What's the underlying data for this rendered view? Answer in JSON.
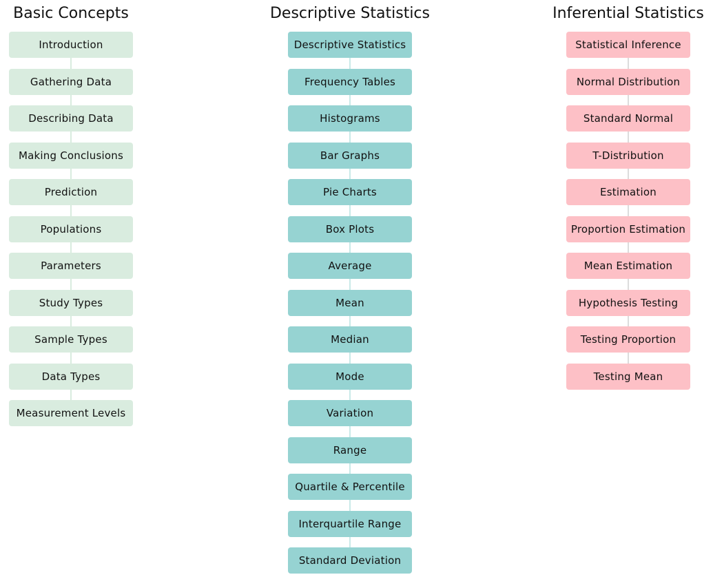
{
  "colors": {
    "basic_fill": "#d9ecdf",
    "basic_line": "#d9ecdf",
    "desc_fill": "#96d3d2",
    "desc_line": "#c9e9e8",
    "inf_fill": "#fdc0c6",
    "inf_line": "#dcdcdc"
  },
  "columns": [
    {
      "key": "basic",
      "title": "Basic Concepts",
      "items": [
        "Introduction",
        "Gathering Data",
        "Describing Data",
        "Making Conclusions",
        "Prediction",
        "Populations",
        "Parameters",
        "Study Types",
        "Sample Types",
        "Data Types",
        "Measurement Levels"
      ]
    },
    {
      "key": "desc",
      "title": "Descriptive Statistics",
      "items": [
        "Descriptive Statistics",
        "Frequency Tables",
        "Histograms",
        "Bar Graphs",
        "Pie Charts",
        "Box Plots",
        "Average",
        "Mean",
        "Median",
        "Mode",
        "Variation",
        "Range",
        "Quartile & Percentile",
        "Interquartile Range",
        "Standard Deviation"
      ]
    },
    {
      "key": "inf",
      "title": "Inferential Statistics",
      "items": [
        "Statistical Inference",
        "Normal Distribution",
        "Standard Normal",
        "T-Distribution",
        "Estimation",
        "Proportion Estimation",
        "Mean Estimation",
        "Hypothesis Testing",
        "Testing Proportion",
        "Testing Mean"
      ]
    }
  ]
}
